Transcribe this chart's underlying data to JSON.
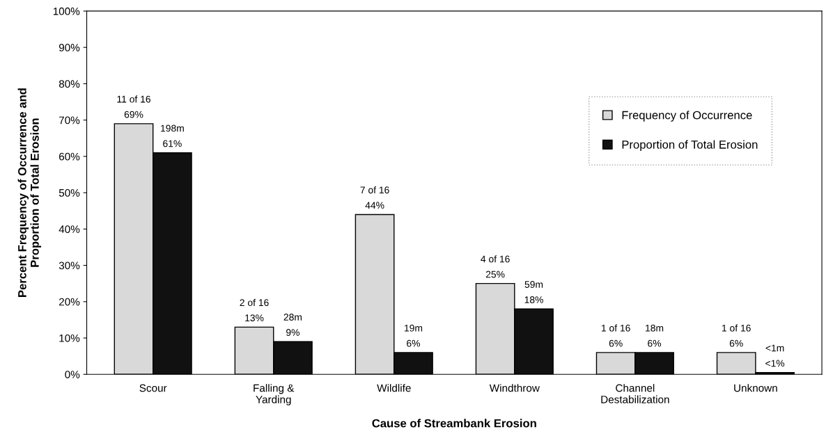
{
  "chart_data": {
    "type": "bar",
    "xlabel": "Cause of Streambank Erosion",
    "ylabel": "Percent Frequency of Occurrence and\nProportion of Total Erosion",
    "categories": [
      "Scour",
      "Falling &\nYarding",
      "Wildlife",
      "Windthrow",
      "Channel\nDestabilization",
      "Unknown"
    ],
    "series": [
      {
        "name": "Frequency of Occurrence",
        "color": "#d9d9d9",
        "values": [
          69,
          13,
          44,
          25,
          6,
          6
        ],
        "value_labels": [
          "11 of 16\n69%",
          "2 of 16\n13%",
          "7 of 16\n44%",
          "4 of 16\n25%",
          "1 of 16\n6%",
          "1 of 16\n6%"
        ]
      },
      {
        "name": "Proportion of Total Erosion",
        "color": "#111111",
        "values": [
          61,
          9,
          6,
          18,
          6,
          0.5
        ],
        "value_labels": [
          "198m\n61%",
          "28m\n9%",
          "19m\n6%",
          "59m\n18%",
          "18m\n6%",
          "<1m\n<1%"
        ]
      }
    ],
    "ylim": [
      0,
      100
    ],
    "yticks": [
      {
        "value": 0,
        "label": "0%"
      },
      {
        "value": 10,
        "label": "10%"
      },
      {
        "value": 20,
        "label": "20%"
      },
      {
        "value": 30,
        "label": "30%"
      },
      {
        "value": 40,
        "label": "40%"
      },
      {
        "value": 50,
        "label": "50%"
      },
      {
        "value": 60,
        "label": "60%"
      },
      {
        "value": 70,
        "label": "70%"
      },
      {
        "value": 80,
        "label": "80%"
      },
      {
        "value": 90,
        "label": "90%"
      },
      {
        "value": 100,
        "label": "100%"
      }
    ],
    "grid": false,
    "legend": "top right"
  }
}
